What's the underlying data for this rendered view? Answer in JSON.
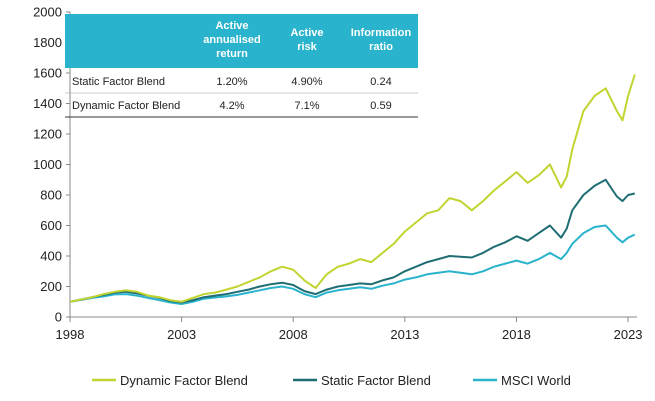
{
  "colors": {
    "dynamic": "#C2D430",
    "static": "#1F6E74",
    "msci": "#2AB3CC",
    "table_header": "#2AB3CC",
    "axis": "#888888"
  },
  "table": {
    "headers": [
      "",
      "Active annualised return",
      "Active risk",
      "Information ratio"
    ],
    "rows": [
      [
        "Static Factor Blend",
        "1.20%",
        "4.90%",
        "0.24"
      ],
      [
        "Dynamic Factor Blend",
        "4.2%",
        "7.1%",
        "0.59"
      ]
    ]
  },
  "chart_data": {
    "type": "line",
    "title": "",
    "xlabel": "",
    "ylabel": "",
    "xlim": [
      1998,
      2023.4
    ],
    "ylim": [
      0,
      2000
    ],
    "x_ticks": [
      "1998",
      "2003",
      "2008",
      "2013",
      "2018",
      "2023"
    ],
    "y_ticks": [
      "0",
      "200",
      "400",
      "600",
      "800",
      "1000",
      "1200",
      "1400",
      "1600",
      "1800",
      "2000"
    ],
    "grid": false,
    "legend_position": "bottom",
    "x": [
      1998,
      1998.5,
      1999,
      1999.5,
      2000,
      2000.5,
      2001,
      2001.5,
      2002,
      2002.5,
      2003,
      2003.5,
      2004,
      2004.5,
      2005,
      2005.5,
      2006,
      2006.5,
      2007,
      2007.5,
      2008,
      2008.5,
      2009,
      2009.5,
      2010,
      2010.5,
      2011,
      2011.5,
      2012,
      2012.5,
      2013,
      2013.5,
      2014,
      2014.5,
      2015,
      2015.5,
      2016,
      2016.5,
      2017,
      2017.5,
      2018,
      2018.5,
      2019,
      2019.5,
      2020,
      2020.25,
      2020.5,
      2021,
      2021.5,
      2022,
      2022.5,
      2022.75,
      2023,
      2023.3
    ],
    "series": [
      {
        "name": "Dynamic Factor Blend",
        "values": [
          100,
          115,
          130,
          150,
          165,
          175,
          165,
          140,
          130,
          110,
          100,
          125,
          150,
          160,
          180,
          200,
          230,
          260,
          300,
          330,
          310,
          240,
          190,
          280,
          330,
          350,
          380,
          360,
          420,
          480,
          560,
          620,
          680,
          700,
          780,
          760,
          700,
          760,
          830,
          890,
          950,
          880,
          930,
          1000,
          850,
          920,
          1100,
          1350,
          1450,
          1500,
          1350,
          1290,
          1450,
          1590
        ]
      },
      {
        "name": "Static Factor Blend",
        "values": [
          100,
          115,
          130,
          145,
          160,
          165,
          155,
          140,
          125,
          105,
          95,
          110,
          130,
          140,
          150,
          165,
          180,
          200,
          215,
          225,
          210,
          170,
          150,
          180,
          200,
          210,
          220,
          215,
          240,
          260,
          300,
          330,
          360,
          380,
          400,
          395,
          390,
          420,
          460,
          490,
          530,
          500,
          550,
          600,
          520,
          580,
          700,
          800,
          860,
          900,
          790,
          760,
          800,
          810
        ]
      },
      {
        "name": "MSCI World",
        "values": [
          100,
          112,
          125,
          135,
          148,
          150,
          140,
          125,
          110,
          95,
          85,
          100,
          120,
          128,
          135,
          145,
          160,
          175,
          190,
          200,
          185,
          150,
          130,
          160,
          175,
          185,
          195,
          185,
          205,
          220,
          245,
          260,
          280,
          290,
          300,
          290,
          280,
          300,
          330,
          350,
          370,
          350,
          380,
          420,
          380,
          420,
          480,
          550,
          590,
          600,
          520,
          490,
          520,
          540
        ]
      }
    ]
  }
}
